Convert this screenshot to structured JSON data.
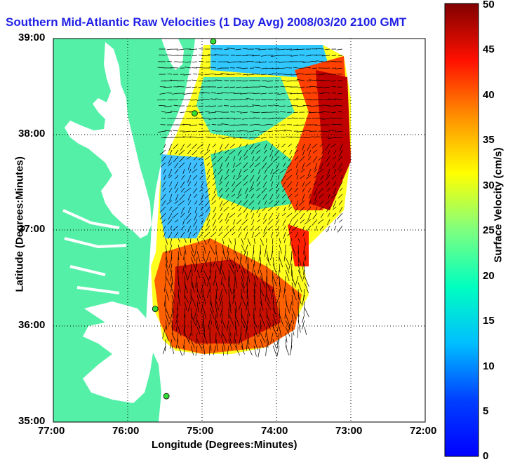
{
  "chart_data": {
    "type": "heatmap",
    "title": "Southern Mid-Atlantic Raw Velocities (1 Day Avg) 2008/03/20 2100 GMT",
    "xlabel": "Longitude (Degrees:Minutes)",
    "ylabel": "Latitude (Degrees:Minutes)",
    "x_ticks": [
      "77:00",
      "76:00",
      "75:00",
      "74:00",
      "73:00",
      "72:00"
    ],
    "y_ticks": [
      "39:00",
      "38:00",
      "37:00",
      "36:00",
      "35:00"
    ],
    "xlim": [
      -77,
      -72
    ],
    "ylim": [
      35,
      39
    ],
    "grid": true,
    "colorbar": {
      "label": "Surface Velocity (cm/s)",
      "min": 0,
      "max": 50,
      "ticks": [
        "50",
        "45",
        "40",
        "35",
        "30",
        "25",
        "20",
        "15",
        "10",
        "5",
        "0"
      ],
      "colormap": "jet"
    },
    "land_color": "#55f0a8",
    "sites": [
      {
        "lon": -74.85,
        "lat": 38.97
      },
      {
        "lon": -75.1,
        "lat": 38.22
      },
      {
        "lon": -75.63,
        "lat": 36.18
      },
      {
        "lon": -75.48,
        "lat": 35.27
      }
    ]
  }
}
